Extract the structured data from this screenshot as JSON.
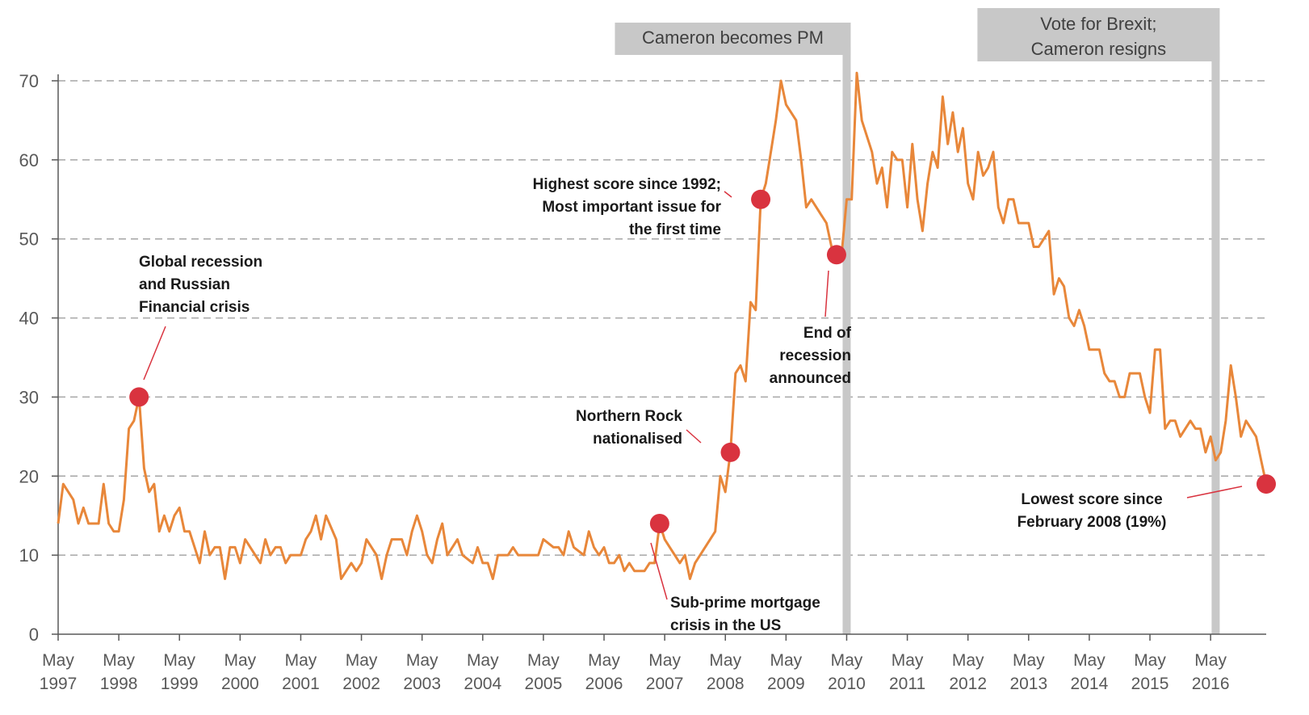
{
  "chart_data": {
    "type": "line",
    "title": "",
    "xlabel": "",
    "ylabel": "",
    "ylim": [
      0,
      70
    ],
    "yticks": [
      0,
      10,
      20,
      30,
      40,
      50,
      60,
      70
    ],
    "xlim": [
      "1997-05",
      "2017-04"
    ],
    "grid": "horizontal dashed",
    "x_tick_labels": [
      {
        "x": "1997-05",
        "month": "May",
        "year": "1997"
      },
      {
        "x": "1998-05",
        "month": "May",
        "year": "1998"
      },
      {
        "x": "1999-05",
        "month": "May",
        "year": "1999"
      },
      {
        "x": "2000-05",
        "month": "May",
        "year": "2000"
      },
      {
        "x": "2001-05",
        "month": "May",
        "year": "2001"
      },
      {
        "x": "2002-05",
        "month": "May",
        "year": "2002"
      },
      {
        "x": "2003-05",
        "month": "May",
        "year": "2003"
      },
      {
        "x": "2004-05",
        "month": "May",
        "year": "2004"
      },
      {
        "x": "2005-05",
        "month": "May",
        "year": "2005"
      },
      {
        "x": "2006-05",
        "month": "May",
        "year": "2006"
      },
      {
        "x": "2007-05",
        "month": "May",
        "year": "2007"
      },
      {
        "x": "2008-05",
        "month": "May",
        "year": "2008"
      },
      {
        "x": "2009-05",
        "month": "May",
        "year": "2009"
      },
      {
        "x": "2010-05",
        "month": "May",
        "year": "2010"
      },
      {
        "x": "2011-05",
        "month": "May",
        "year": "2011"
      },
      {
        "x": "2012-05",
        "month": "May",
        "year": "2012"
      },
      {
        "x": "2013-05",
        "month": "May",
        "year": "2013"
      },
      {
        "x": "2014-05",
        "month": "May",
        "year": "2014"
      },
      {
        "x": "2015-05",
        "month": "May",
        "year": "2015"
      },
      {
        "x": "2016-05",
        "month": "May",
        "year": "2016"
      }
    ],
    "series": [
      {
        "color": "#e8873a",
        "points": [
          [
            "1997-05",
            14
          ],
          [
            "1997-06",
            19
          ],
          [
            "1997-08",
            17
          ],
          [
            "1997-09",
            14
          ],
          [
            "1997-10",
            16
          ],
          [
            "1997-11",
            14
          ],
          [
            "1998-01",
            14
          ],
          [
            "1998-02",
            19
          ],
          [
            "1998-03",
            14
          ],
          [
            "1998-04",
            13
          ],
          [
            "1998-05",
            13
          ],
          [
            "1998-06",
            17
          ],
          [
            "1998-07",
            26
          ],
          [
            "1998-08",
            27
          ],
          [
            "1998-09",
            30
          ],
          [
            "1998-10",
            21
          ],
          [
            "1998-11",
            18
          ],
          [
            "1998-12",
            19
          ],
          [
            "1999-01",
            13
          ],
          [
            "1999-02",
            15
          ],
          [
            "1999-03",
            13
          ],
          [
            "1999-04",
            15
          ],
          [
            "1999-05",
            16
          ],
          [
            "1999-06",
            13
          ],
          [
            "1999-07",
            13
          ],
          [
            "1999-08",
            11
          ],
          [
            "1999-09",
            9
          ],
          [
            "1999-10",
            13
          ],
          [
            "1999-11",
            10
          ],
          [
            "1999-12",
            11
          ],
          [
            "2000-01",
            11
          ],
          [
            "2000-02",
            7
          ],
          [
            "2000-03",
            11
          ],
          [
            "2000-04",
            11
          ],
          [
            "2000-05",
            9
          ],
          [
            "2000-06",
            12
          ],
          [
            "2000-08",
            10
          ],
          [
            "2000-09",
            9
          ],
          [
            "2000-10",
            12
          ],
          [
            "2000-11",
            10
          ],
          [
            "2000-12",
            11
          ],
          [
            "2001-01",
            11
          ],
          [
            "2001-02",
            9
          ],
          [
            "2001-03",
            10
          ],
          [
            "2001-05",
            10
          ],
          [
            "2001-06",
            12
          ],
          [
            "2001-07",
            13
          ],
          [
            "2001-08",
            15
          ],
          [
            "2001-09",
            12
          ],
          [
            "2001-10",
            15
          ],
          [
            "2001-12",
            12
          ],
          [
            "2002-01",
            7
          ],
          [
            "2002-03",
            9
          ],
          [
            "2002-04",
            8
          ],
          [
            "2002-05",
            9
          ],
          [
            "2002-06",
            12
          ],
          [
            "2002-08",
            10
          ],
          [
            "2002-09",
            7
          ],
          [
            "2002-10",
            10
          ],
          [
            "2002-11",
            12
          ],
          [
            "2003-01",
            12
          ],
          [
            "2003-02",
            10
          ],
          [
            "2003-03",
            13
          ],
          [
            "2003-04",
            15
          ],
          [
            "2003-05",
            13
          ],
          [
            "2003-06",
            10
          ],
          [
            "2003-07",
            9
          ],
          [
            "2003-08",
            12
          ],
          [
            "2003-09",
            14
          ],
          [
            "2003-10",
            10
          ],
          [
            "2003-11",
            11
          ],
          [
            "2003-12",
            12
          ],
          [
            "2004-01",
            10
          ],
          [
            "2004-03",
            9
          ],
          [
            "2004-04",
            11
          ],
          [
            "2004-05",
            9
          ],
          [
            "2004-06",
            9
          ],
          [
            "2004-07",
            7
          ],
          [
            "2004-08",
            10
          ],
          [
            "2004-10",
            10
          ],
          [
            "2004-11",
            11
          ],
          [
            "2004-12",
            10
          ],
          [
            "2005-01",
            10
          ],
          [
            "2005-04",
            10
          ],
          [
            "2005-05",
            12
          ],
          [
            "2005-07",
            11
          ],
          [
            "2005-08",
            11
          ],
          [
            "2005-09",
            10
          ],
          [
            "2005-10",
            13
          ],
          [
            "2005-11",
            11
          ],
          [
            "2006-01",
            10
          ],
          [
            "2006-02",
            13
          ],
          [
            "2006-03",
            11
          ],
          [
            "2006-04",
            10
          ],
          [
            "2006-05",
            11
          ],
          [
            "2006-06",
            9
          ],
          [
            "2006-07",
            9
          ],
          [
            "2006-08",
            10
          ],
          [
            "2006-09",
            8
          ],
          [
            "2006-10",
            9
          ],
          [
            "2006-11",
            8
          ],
          [
            "2007-01",
            8
          ],
          [
            "2007-02",
            9
          ],
          [
            "2007-03",
            9
          ],
          [
            "2007-04",
            14
          ],
          [
            "2007-05",
            12
          ],
          [
            "2007-06",
            11
          ],
          [
            "2007-07",
            10
          ],
          [
            "2007-08",
            9
          ],
          [
            "2007-09",
            10
          ],
          [
            "2007-10",
            7
          ],
          [
            "2007-11",
            9
          ],
          [
            "2008-03",
            13
          ],
          [
            "2008-04",
            20
          ],
          [
            "2008-05",
            18
          ],
          [
            "2008-06",
            23
          ],
          [
            "2008-07",
            33
          ],
          [
            "2008-08",
            34
          ],
          [
            "2008-09",
            32
          ],
          [
            "2008-10",
            42
          ],
          [
            "2008-11",
            41
          ],
          [
            "2008-12",
            55
          ],
          [
            "2009-01",
            57
          ],
          [
            "2009-02",
            61
          ],
          [
            "2009-03",
            65
          ],
          [
            "2009-04",
            70
          ],
          [
            "2009-05",
            67
          ],
          [
            "2009-07",
            65
          ],
          [
            "2009-08",
            60
          ],
          [
            "2009-09",
            54
          ],
          [
            "2009-10",
            55
          ],
          [
            "2009-12",
            53
          ],
          [
            "2010-01",
            52
          ],
          [
            "2010-02",
            49
          ],
          [
            "2010-03",
            48
          ],
          [
            "2010-04",
            48
          ],
          [
            "2010-05",
            55
          ],
          [
            "2010-06",
            55
          ],
          [
            "2010-07",
            71
          ],
          [
            "2010-08",
            65
          ],
          [
            "2010-10",
            61
          ],
          [
            "2010-11",
            57
          ],
          [
            "2010-12",
            59
          ],
          [
            "2011-01",
            54
          ],
          [
            "2011-02",
            61
          ],
          [
            "2011-03",
            60
          ],
          [
            "2011-04",
            60
          ],
          [
            "2011-05",
            54
          ],
          [
            "2011-06",
            62
          ],
          [
            "2011-07",
            55
          ],
          [
            "2011-08",
            51
          ],
          [
            "2011-09",
            57
          ],
          [
            "2011-10",
            61
          ],
          [
            "2011-11",
            59
          ],
          [
            "2011-12",
            68
          ],
          [
            "2012-01",
            62
          ],
          [
            "2012-02",
            66
          ],
          [
            "2012-03",
            61
          ],
          [
            "2012-04",
            64
          ],
          [
            "2012-05",
            57
          ],
          [
            "2012-06",
            55
          ],
          [
            "2012-07",
            61
          ],
          [
            "2012-08",
            58
          ],
          [
            "2012-09",
            59
          ],
          [
            "2012-10",
            61
          ],
          [
            "2012-11",
            54
          ],
          [
            "2012-12",
            52
          ],
          [
            "2013-01",
            55
          ],
          [
            "2013-02",
            55
          ],
          [
            "2013-03",
            52
          ],
          [
            "2013-05",
            52
          ],
          [
            "2013-06",
            49
          ],
          [
            "2013-07",
            49
          ],
          [
            "2013-08",
            50
          ],
          [
            "2013-09",
            51
          ],
          [
            "2013-10",
            43
          ],
          [
            "2013-11",
            45
          ],
          [
            "2013-12",
            44
          ],
          [
            "2014-01",
            40
          ],
          [
            "2014-02",
            39
          ],
          [
            "2014-03",
            41
          ],
          [
            "2014-04",
            39
          ],
          [
            "2014-05",
            36
          ],
          [
            "2014-07",
            36
          ],
          [
            "2014-08",
            33
          ],
          [
            "2014-09",
            32
          ],
          [
            "2014-10",
            32
          ],
          [
            "2014-11",
            30
          ],
          [
            "2014-12",
            30
          ],
          [
            "2015-01",
            33
          ],
          [
            "2015-03",
            33
          ],
          [
            "2015-04",
            30
          ],
          [
            "2015-05",
            28
          ],
          [
            "2015-06",
            36
          ],
          [
            "2015-07",
            36
          ],
          [
            "2015-08",
            26
          ],
          [
            "2015-09",
            27
          ],
          [
            "2015-10",
            27
          ],
          [
            "2015-11",
            25
          ],
          [
            "2016-01",
            27
          ],
          [
            "2016-02",
            26
          ],
          [
            "2016-03",
            26
          ],
          [
            "2016-04",
            23
          ],
          [
            "2016-05",
            25
          ],
          [
            "2016-06",
            22
          ],
          [
            "2016-07",
            23
          ],
          [
            "2016-08",
            27
          ],
          [
            "2016-09",
            34
          ],
          [
            "2016-10",
            30
          ],
          [
            "2016-11",
            25
          ],
          [
            "2016-12",
            27
          ],
          [
            "2017-02",
            25
          ],
          [
            "2017-03",
            22
          ],
          [
            "2017-04",
            19
          ]
        ]
      }
    ],
    "events": [
      {
        "x": "2010-05",
        "label": "Cameron becomes PM",
        "anchor": "end"
      },
      {
        "x": "2016-06",
        "label": "Vote for Brexit;\nCameron resigns",
        "anchor": "end"
      }
    ],
    "annotations": [
      {
        "x": "1998-09",
        "y": 30,
        "text": "Global recession\nand Russian\nFinancial crisis",
        "align": "left"
      },
      {
        "x": "2007-04",
        "y": 14,
        "text": "Sub-prime mortgage\ncrisis in the US",
        "align": "left"
      },
      {
        "x": "2008-06",
        "y": 23,
        "text": "Northern Rock\nnationalised",
        "align": "right"
      },
      {
        "x": "2008-12",
        "y": 55,
        "text": "Highest score since 1992;\nMost important issue for\nthe first time",
        "align": "right"
      },
      {
        "x": "2010-03",
        "y": 48,
        "text": "End of\nrecession\nannounced",
        "align": "right"
      },
      {
        "x": "2017-04",
        "y": 19,
        "text": "Lowest score since\nFebruary 2008 (19%)",
        "align": "center"
      }
    ]
  }
}
